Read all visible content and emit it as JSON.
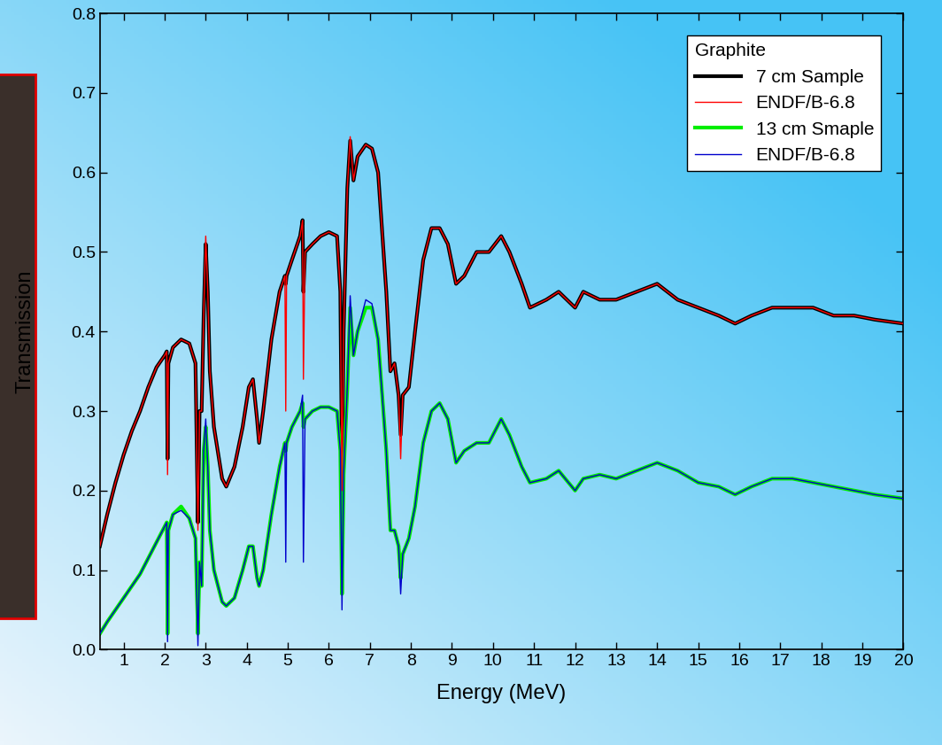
{
  "chart_data": {
    "type": "line",
    "x_label": "Energy (MeV)",
    "y_label": "Transmission",
    "legend_title": "Graphite",
    "x": [
      0.42,
      0.6,
      0.8,
      1.0,
      1.2,
      1.4,
      1.6,
      1.8,
      2.0,
      2.05,
      2.07,
      2.09,
      2.2,
      2.4,
      2.6,
      2.75,
      2.81,
      2.85,
      2.9,
      2.95,
      3.0,
      3.05,
      3.1,
      3.2,
      3.4,
      3.5,
      3.7,
      3.9,
      4.05,
      4.15,
      4.25,
      4.3,
      4.4,
      4.6,
      4.8,
      4.93,
      4.95,
      4.97,
      5.1,
      5.3,
      5.36,
      5.38,
      5.42,
      5.6,
      5.8,
      6.0,
      6.2,
      6.28,
      6.32,
      6.36,
      6.45,
      6.52,
      6.6,
      6.7,
      6.9,
      7.05,
      7.2,
      7.4,
      7.5,
      7.6,
      7.7,
      7.75,
      7.8,
      7.95,
      8.1,
      8.3,
      8.5,
      8.7,
      8.9,
      9.1,
      9.3,
      9.6,
      9.9,
      10.2,
      10.4,
      10.7,
      10.9,
      11.3,
      11.6,
      12.0,
      12.2,
      12.6,
      13.0,
      13.5,
      14.0,
      14.5,
      15.0,
      15.5,
      15.9,
      16.3,
      16.8,
      17.3,
      17.8,
      18.3,
      18.8,
      19.3,
      20.0
    ],
    "series": [
      {
        "name": "7 cm Sample",
        "color": "#000000",
        "values": [
          0.13,
          0.17,
          0.21,
          0.245,
          0.275,
          0.3,
          0.33,
          0.355,
          0.37,
          0.375,
          0.24,
          0.36,
          0.38,
          0.39,
          0.385,
          0.36,
          0.16,
          0.3,
          0.3,
          0.42,
          0.51,
          0.45,
          0.35,
          0.28,
          0.215,
          0.205,
          0.23,
          0.28,
          0.33,
          0.34,
          0.29,
          0.26,
          0.3,
          0.39,
          0.45,
          0.47,
          0.46,
          0.47,
          0.49,
          0.52,
          0.54,
          0.45,
          0.5,
          0.51,
          0.52,
          0.525,
          0.52,
          0.45,
          0.23,
          0.4,
          0.58,
          0.64,
          0.59,
          0.62,
          0.635,
          0.63,
          0.6,
          0.45,
          0.35,
          0.36,
          0.32,
          0.27,
          0.32,
          0.33,
          0.4,
          0.49,
          0.53,
          0.53,
          0.51,
          0.46,
          0.47,
          0.5,
          0.5,
          0.52,
          0.5,
          0.46,
          0.43,
          0.44,
          0.45,
          0.43,
          0.45,
          0.44,
          0.44,
          0.45,
          0.46,
          0.44,
          0.43,
          0.42,
          0.41,
          0.42,
          0.43,
          0.43,
          0.43,
          0.42,
          0.42,
          0.415,
          0.41
        ]
      },
      {
        "name": "ENDF/B-6.8",
        "color": "#ff0000",
        "values": [
          0.13,
          0.17,
          0.21,
          0.245,
          0.275,
          0.3,
          0.33,
          0.355,
          0.37,
          0.375,
          0.22,
          0.36,
          0.38,
          0.39,
          0.385,
          0.36,
          0.15,
          0.3,
          0.3,
          0.42,
          0.52,
          0.45,
          0.35,
          0.28,
          0.215,
          0.205,
          0.23,
          0.28,
          0.33,
          0.34,
          0.29,
          0.26,
          0.3,
          0.39,
          0.45,
          0.47,
          0.3,
          0.47,
          0.49,
          0.52,
          0.54,
          0.34,
          0.5,
          0.51,
          0.52,
          0.525,
          0.52,
          0.45,
          0.2,
          0.4,
          0.58,
          0.645,
          0.59,
          0.62,
          0.635,
          0.63,
          0.6,
          0.45,
          0.35,
          0.36,
          0.32,
          0.24,
          0.32,
          0.33,
          0.4,
          0.49,
          0.53,
          0.53,
          0.51,
          0.46,
          0.47,
          0.5,
          0.5,
          0.52,
          0.5,
          0.46,
          0.43,
          0.44,
          0.45,
          0.43,
          0.45,
          0.44,
          0.44,
          0.45,
          0.46,
          0.44,
          0.43,
          0.42,
          0.41,
          0.42,
          0.43,
          0.43,
          0.43,
          0.42,
          0.42,
          0.415,
          0.41
        ]
      },
      {
        "name": "13 cm Smaple",
        "color": "#00ee00",
        "values": [
          0.02,
          0.035,
          0.05,
          0.065,
          0.08,
          0.095,
          0.115,
          0.135,
          0.155,
          0.16,
          0.02,
          0.15,
          0.17,
          0.18,
          0.165,
          0.14,
          0.02,
          0.11,
          0.08,
          0.25,
          0.28,
          0.23,
          0.15,
          0.1,
          0.06,
          0.055,
          0.065,
          0.1,
          0.13,
          0.13,
          0.09,
          0.08,
          0.1,
          0.17,
          0.23,
          0.26,
          0.25,
          0.26,
          0.28,
          0.3,
          0.31,
          0.28,
          0.29,
          0.3,
          0.305,
          0.305,
          0.3,
          0.25,
          0.07,
          0.22,
          0.33,
          0.43,
          0.37,
          0.4,
          0.43,
          0.43,
          0.39,
          0.25,
          0.15,
          0.15,
          0.13,
          0.09,
          0.12,
          0.14,
          0.18,
          0.26,
          0.3,
          0.31,
          0.29,
          0.235,
          0.25,
          0.26,
          0.26,
          0.29,
          0.27,
          0.23,
          0.21,
          0.215,
          0.225,
          0.2,
          0.215,
          0.22,
          0.215,
          0.225,
          0.235,
          0.225,
          0.21,
          0.205,
          0.195,
          0.205,
          0.215,
          0.215,
          0.21,
          0.205,
          0.2,
          0.195,
          0.19
        ]
      },
      {
        "name": "ENDF/B-6.8",
        "color": "#0000cc",
        "values": [
          0.02,
          0.035,
          0.05,
          0.065,
          0.08,
          0.095,
          0.115,
          0.135,
          0.155,
          0.16,
          0.01,
          0.15,
          0.17,
          0.175,
          0.165,
          0.14,
          0.005,
          0.11,
          0.08,
          0.25,
          0.29,
          0.23,
          0.15,
          0.1,
          0.06,
          0.055,
          0.065,
          0.1,
          0.13,
          0.13,
          0.09,
          0.08,
          0.1,
          0.17,
          0.23,
          0.26,
          0.11,
          0.26,
          0.28,
          0.3,
          0.32,
          0.11,
          0.29,
          0.3,
          0.305,
          0.305,
          0.3,
          0.25,
          0.05,
          0.22,
          0.33,
          0.445,
          0.37,
          0.4,
          0.44,
          0.435,
          0.39,
          0.25,
          0.15,
          0.15,
          0.13,
          0.07,
          0.12,
          0.14,
          0.18,
          0.26,
          0.3,
          0.31,
          0.29,
          0.235,
          0.25,
          0.26,
          0.26,
          0.29,
          0.27,
          0.23,
          0.21,
          0.215,
          0.225,
          0.2,
          0.215,
          0.22,
          0.215,
          0.225,
          0.235,
          0.225,
          0.21,
          0.205,
          0.195,
          0.205,
          0.215,
          0.215,
          0.21,
          0.205,
          0.2,
          0.195,
          0.19
        ]
      }
    ],
    "xlim": [
      0.42,
      20
    ],
    "xticks": [
      1,
      2,
      3,
      4,
      5,
      6,
      7,
      8,
      9,
      10,
      11,
      12,
      13,
      14,
      15,
      16,
      17,
      18,
      19,
      20
    ],
    "ylim": [
      0.0,
      0.8
    ],
    "yticks": [
      0.0,
      0.1,
      0.2,
      0.3,
      0.4,
      0.5,
      0.6,
      0.7,
      0.8
    ],
    "legend": "upper right",
    "grid": false
  }
}
